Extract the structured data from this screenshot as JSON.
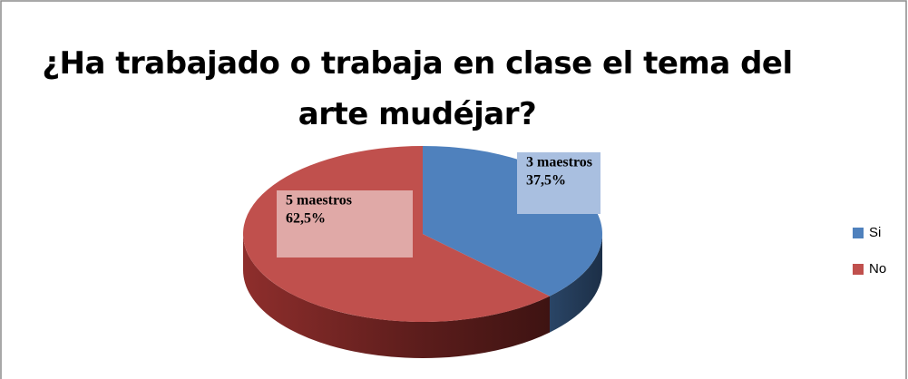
{
  "chart_data": {
    "type": "pie",
    "title": "¿Ha trabajado o trabaja en clase el tema del arte mudéjar?",
    "categories": [
      "Si",
      "No"
    ],
    "values": [
      37.5,
      62.5
    ],
    "value_labels": [
      "37,5%",
      "62,5%"
    ],
    "counts": [
      3,
      5
    ],
    "count_labels": [
      "3 maestros",
      "5 maestros"
    ],
    "colors": [
      "#4f81bd",
      "#c0504d"
    ],
    "legend": "right"
  }
}
